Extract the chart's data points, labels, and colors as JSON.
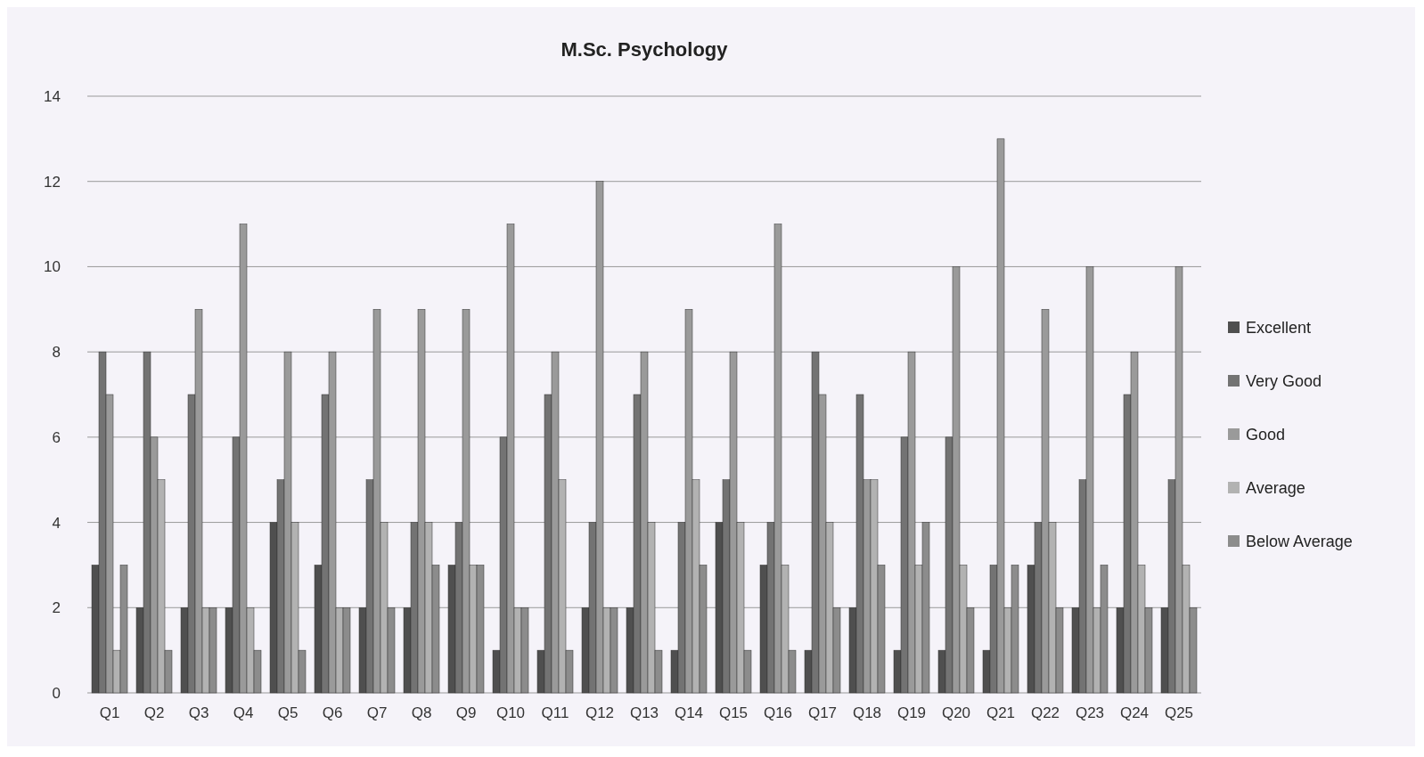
{
  "chart_data": {
    "type": "bar",
    "title": "M.Sc. Psychology",
    "categories": [
      "Q1",
      "Q2",
      "Q3",
      "Q4",
      "Q5",
      "Q6",
      "Q7",
      "Q8",
      "Q9",
      "Q10",
      "Q11",
      "Q12",
      "Q13",
      "Q14",
      "Q15",
      "Q16",
      "Q17",
      "Q18",
      "Q19",
      "Q20",
      "Q21",
      "Q22",
      "Q23",
      "Q24",
      "Q25"
    ],
    "series": [
      {
        "name": "Excellent",
        "color": "#4f4f4f",
        "values": [
          3,
          2,
          2,
          2,
          4,
          3,
          2,
          2,
          3,
          1,
          1,
          2,
          2,
          1,
          4,
          3,
          1,
          2,
          1,
          1,
          1,
          3,
          2,
          2,
          2
        ]
      },
      {
        "name": "Very Good",
        "color": "#737373",
        "values": [
          8,
          8,
          7,
          6,
          5,
          7,
          5,
          4,
          4,
          6,
          7,
          4,
          7,
          4,
          5,
          4,
          8,
          7,
          6,
          6,
          3,
          4,
          5,
          7,
          5
        ]
      },
      {
        "name": "Good",
        "color": "#9a9a9a",
        "values": [
          7,
          6,
          9,
          11,
          8,
          8,
          9,
          9,
          9,
          11,
          8,
          12,
          8,
          9,
          8,
          11,
          7,
          5,
          8,
          10,
          13,
          9,
          10,
          8,
          10
        ]
      },
      {
        "name": "Average",
        "color": "#b2b2b2",
        "values": [
          1,
          5,
          2,
          2,
          4,
          2,
          4,
          4,
          3,
          2,
          5,
          2,
          4,
          5,
          4,
          3,
          4,
          5,
          3,
          3,
          2,
          4,
          2,
          3,
          3
        ]
      },
      {
        "name": "Below Average",
        "color": "#8c8c8c",
        "values": [
          3,
          1,
          2,
          1,
          1,
          2,
          2,
          3,
          3,
          2,
          1,
          2,
          1,
          3,
          1,
          1,
          2,
          3,
          4,
          2,
          3,
          2,
          3,
          2,
          2
        ]
      }
    ],
    "ylim": [
      0,
      14
    ],
    "yticks": [
      0,
      2,
      4,
      6,
      8,
      10,
      12,
      14
    ],
    "grid": "y",
    "legend": "right"
  }
}
